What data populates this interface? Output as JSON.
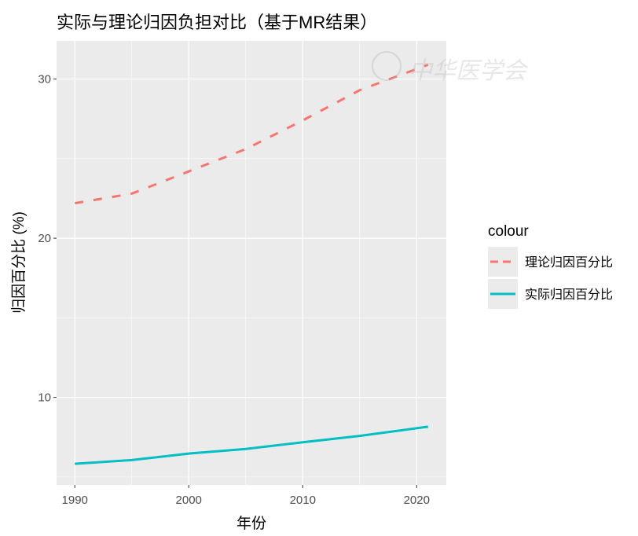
{
  "chart_data": {
    "type": "line",
    "title": "实际与理论归因负担对比（基于MR结果）",
    "xlabel": "年份",
    "ylabel": "归因百分比 (%)",
    "xlim": [
      1988.4,
      2022.6
    ],
    "ylim": [
      4.5,
      32.4
    ],
    "x_ticks": [
      1990,
      2000,
      2010,
      2020
    ],
    "x_tick_labels": [
      "1990",
      "2000",
      "2010",
      "2020"
    ],
    "y_ticks": [
      10,
      20,
      30
    ],
    "y_tick_labels": [
      "10",
      "20",
      "30"
    ],
    "grid": true,
    "legend": {
      "title": "colour",
      "placement": "right"
    },
    "series": [
      {
        "name": "理论归因百分比",
        "color": "#F8766D",
        "style": "dashed",
        "x": [
          1990,
          1995,
          2000,
          2005,
          2010,
          2015,
          2021
        ],
        "y": [
          22.2,
          22.8,
          24.2,
          25.6,
          27.4,
          29.3,
          30.9
        ]
      },
      {
        "name": "实际归因百分比",
        "color": "#00BFC4",
        "style": "solid",
        "x": [
          1990,
          1995,
          2000,
          2005,
          2010,
          2015,
          2021
        ],
        "y": [
          5.83,
          6.06,
          6.47,
          6.76,
          7.18,
          7.58,
          8.16
        ]
      }
    ]
  },
  "watermark": "中华医学会"
}
